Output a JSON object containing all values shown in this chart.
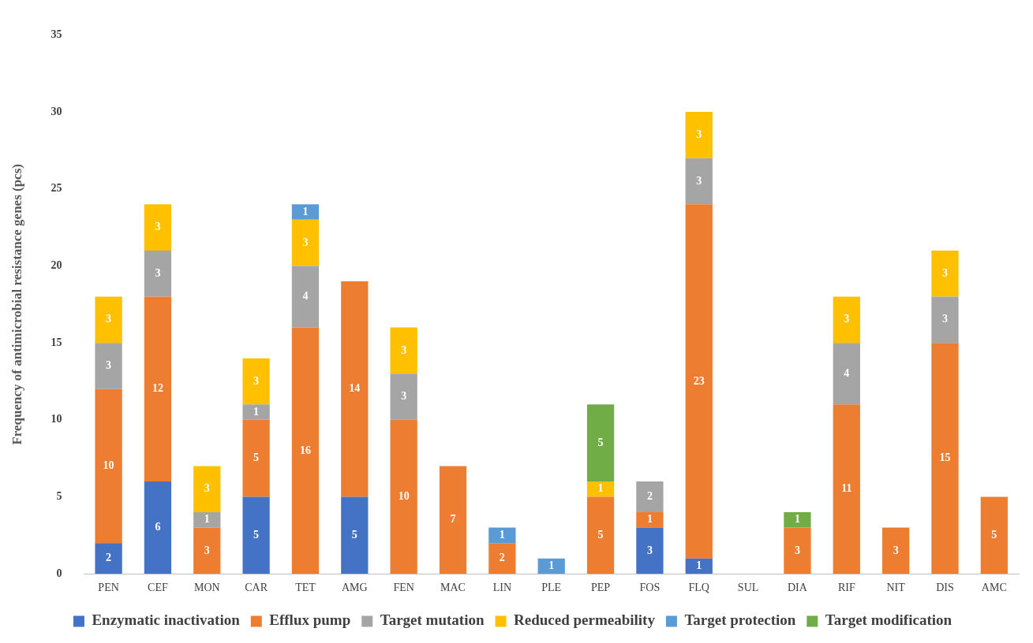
{
  "chart_data": {
    "type": "bar",
    "stacked": true,
    "ylabel": "Frequency of antimicrobial resistance genes (pcs)",
    "categories": [
      "PEN",
      "CEF",
      "MON",
      "CAR",
      "TET",
      "AMG",
      "FEN",
      "MAC",
      "LIN",
      "PLE",
      "PEP",
      "FOS",
      "FLQ",
      "SUL",
      "DIA",
      "RIF",
      "NIT",
      "DIS",
      "AMC"
    ],
    "series": [
      {
        "name": "Enzymatic inactivation",
        "color": "#4472c4",
        "values": [
          2,
          6,
          null,
          5,
          null,
          5,
          null,
          null,
          null,
          null,
          null,
          3,
          1,
          null,
          null,
          null,
          null,
          null,
          null
        ]
      },
      {
        "name": "Efflux pump",
        "color": "#ed7d31",
        "values": [
          10,
          12,
          3,
          5,
          16,
          14,
          10,
          7,
          2,
          null,
          5,
          1,
          23,
          null,
          3,
          11,
          3,
          15,
          5
        ]
      },
      {
        "name": "Target mutation",
        "color": "#a5a5a5",
        "values": [
          3,
          3,
          1,
          1,
          4,
          null,
          3,
          null,
          null,
          null,
          null,
          2,
          3,
          null,
          null,
          4,
          null,
          3,
          null
        ]
      },
      {
        "name": "Reduced permeability",
        "color": "#ffc000",
        "values": [
          3,
          3,
          3,
          3,
          3,
          null,
          3,
          null,
          null,
          null,
          1,
          null,
          3,
          null,
          null,
          3,
          null,
          3,
          null
        ]
      },
      {
        "name": "Target protection",
        "color": "#5b9bd5",
        "values": [
          null,
          null,
          null,
          null,
          1,
          null,
          null,
          null,
          1,
          1,
          null,
          null,
          null,
          null,
          null,
          null,
          null,
          null,
          null
        ]
      },
      {
        "name": "Target modification",
        "color": "#70ad47",
        "values": [
          null,
          null,
          null,
          null,
          null,
          null,
          null,
          null,
          null,
          null,
          5,
          null,
          null,
          null,
          1,
          null,
          null,
          null,
          null
        ]
      }
    ],
    "ylim": [
      0,
      35
    ],
    "yticks": [
      0,
      5,
      10,
      15,
      20,
      25,
      30,
      35
    ],
    "grid": false,
    "legend": "bottom",
    "data_labels": true
  }
}
